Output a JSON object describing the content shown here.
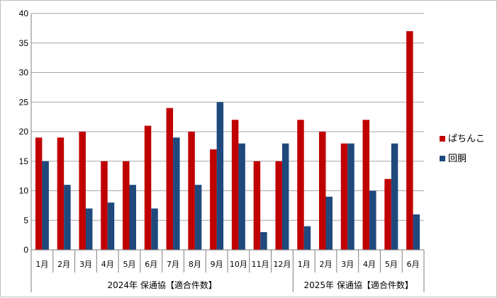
{
  "chart_data": {
    "type": "bar",
    "groups": [
      {
        "label": "2024年 保通協【適合件数】",
        "categories": [
          "1月",
          "2月",
          "3月",
          "4月",
          "5月",
          "6月",
          "7月",
          "8月",
          "9月",
          "10月",
          "11月",
          "12月"
        ]
      },
      {
        "label": "2025年 保通協【適合件数】",
        "categories": [
          "1月",
          "2月",
          "3月",
          "4月",
          "5月",
          "6月"
        ]
      }
    ],
    "categories": [
      "1月",
      "2月",
      "3月",
      "4月",
      "5月",
      "6月",
      "7月",
      "8月",
      "9月",
      "10月",
      "11月",
      "12月",
      "1月",
      "2月",
      "3月",
      "4月",
      "5月",
      "6月"
    ],
    "series": [
      {
        "name": "ぱちんこ",
        "color": "#c00000",
        "values": [
          19,
          19,
          20,
          15,
          15,
          21,
          24,
          20,
          17,
          22,
          15,
          15,
          22,
          20,
          18,
          22,
          12,
          37
        ]
      },
      {
        "name": "回胴",
        "color": "#1f497d",
        "values": [
          15,
          11,
          7,
          8,
          11,
          7,
          19,
          11,
          25,
          18,
          3,
          18,
          4,
          9,
          18,
          10,
          18,
          6
        ]
      }
    ],
    "ylim": [
      0,
      40
    ],
    "yticks": [
      "0",
      "5",
      "10",
      "15",
      "20",
      "25",
      "30",
      "35",
      "40"
    ],
    "grid": true,
    "legend_position": "right"
  }
}
